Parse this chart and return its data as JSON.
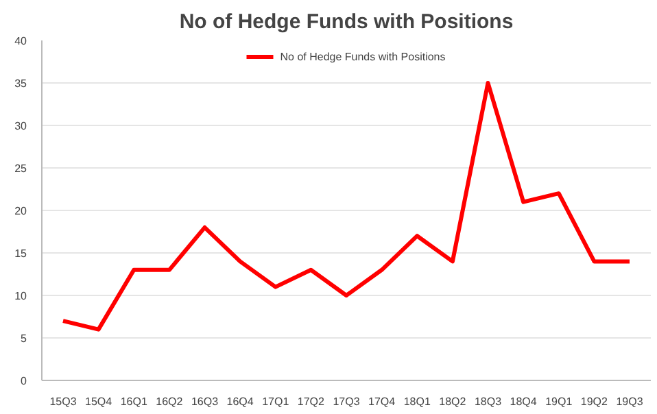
{
  "chart_data": {
    "type": "line",
    "title": "No of Hedge Funds with Positions",
    "categories": [
      "15Q3",
      "15Q4",
      "16Q1",
      "16Q2",
      "16Q3",
      "16Q4",
      "17Q1",
      "17Q2",
      "17Q3",
      "17Q4",
      "18Q1",
      "18Q2",
      "18Q3",
      "18Q4",
      "19Q1",
      "19Q2",
      "19Q3"
    ],
    "series": [
      {
        "name": "No of Hedge Funds with Positions",
        "color": "#ff0000",
        "values": [
          7,
          6,
          13,
          13,
          18,
          14,
          11,
          13,
          10,
          13,
          17,
          14,
          35,
          21,
          22,
          14,
          14
        ]
      }
    ],
    "ylim": [
      0,
      40
    ],
    "yticks": [
      0,
      5,
      10,
      15,
      20,
      25,
      30,
      35,
      40
    ],
    "grid": "y",
    "legend": "top",
    "marker": "none",
    "line_style": "solid"
  }
}
